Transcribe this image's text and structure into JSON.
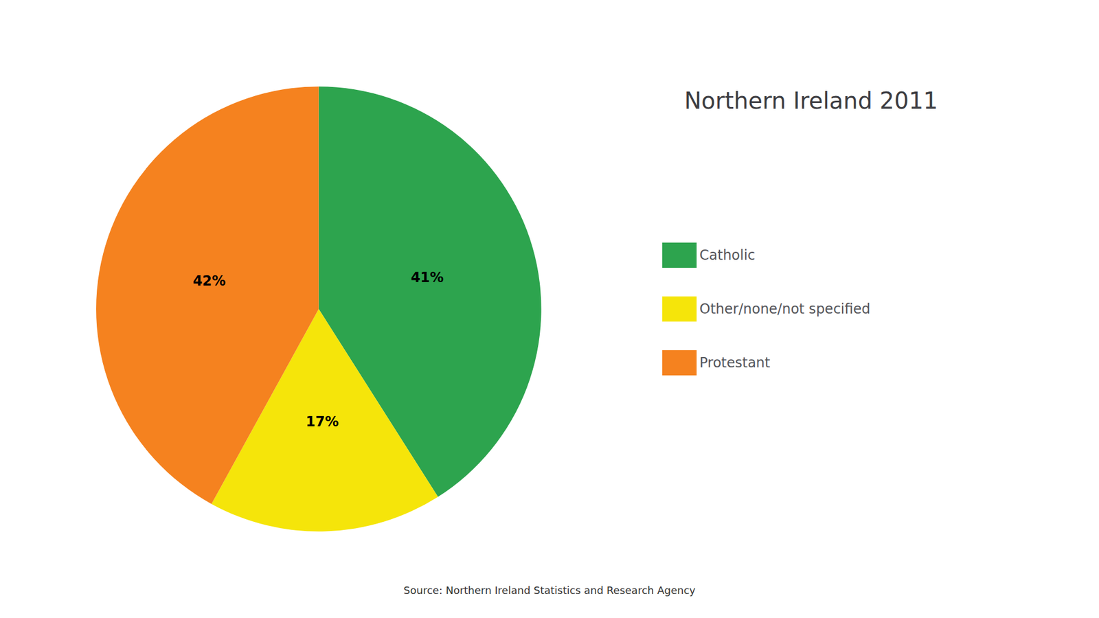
{
  "chart_data": {
    "type": "pie",
    "title": "Northern Ireland 2011",
    "categories": [
      "Catholic",
      "Other/none/not specified",
      "Protestant"
    ],
    "values": [
      41,
      17,
      42
    ],
    "value_labels": [
      "41%",
      "17%",
      "42%"
    ],
    "colors": [
      "#2DA44E",
      "#F5E50A",
      "#F5821F"
    ],
    "data_labels": true,
    "legend": "right",
    "annotations": [
      "Source: Northern Ireland Statistics and Research Agency"
    ]
  }
}
